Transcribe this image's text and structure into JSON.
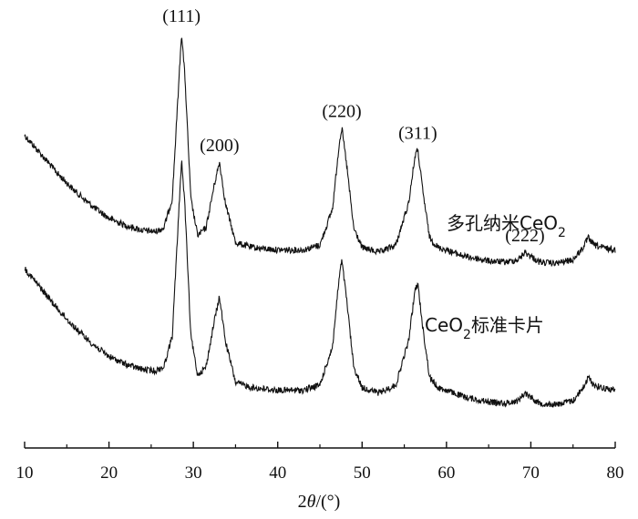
{
  "chart_data": {
    "type": "line",
    "title": "",
    "xlabel": {
      "prefix": "2",
      "symbol": "θ",
      "unit": "/(°)"
    },
    "ylabel": "",
    "xlim": [
      10,
      80
    ],
    "x_ticks": [
      10,
      20,
      30,
      40,
      50,
      60,
      70,
      80
    ],
    "grid": false,
    "series": [
      {
        "name": "多孔纳米CeO",
        "subscript": "2",
        "points": [
          [
            10,
            0.58
          ],
          [
            12,
            0.5
          ],
          [
            14,
            0.42
          ],
          [
            16,
            0.35
          ],
          [
            18,
            0.29
          ],
          [
            20,
            0.24
          ],
          [
            22,
            0.21
          ],
          [
            24,
            0.19
          ],
          [
            25.5,
            0.185
          ],
          [
            26.5,
            0.2
          ],
          [
            27.5,
            0.32
          ],
          [
            28.2,
            0.75
          ],
          [
            28.6,
            1.0
          ],
          [
            29.0,
            0.82
          ],
          [
            29.7,
            0.32
          ],
          [
            30.5,
            0.17
          ],
          [
            31.5,
            0.2
          ],
          [
            32.5,
            0.38
          ],
          [
            33.1,
            0.47
          ],
          [
            33.8,
            0.3
          ],
          [
            35,
            0.14
          ],
          [
            37,
            0.12
          ],
          [
            40,
            0.11
          ],
          [
            43,
            0.11
          ],
          [
            45,
            0.13
          ],
          [
            46.5,
            0.28
          ],
          [
            47.3,
            0.55
          ],
          [
            47.6,
            0.61
          ],
          [
            48.2,
            0.45
          ],
          [
            49,
            0.2
          ],
          [
            50,
            0.12
          ],
          [
            52,
            0.1
          ],
          [
            54,
            0.13
          ],
          [
            55.5,
            0.3
          ],
          [
            56.3,
            0.5
          ],
          [
            56.6,
            0.52
          ],
          [
            57.2,
            0.35
          ],
          [
            58,
            0.16
          ],
          [
            59,
            0.12
          ],
          [
            60,
            0.11
          ],
          [
            62,
            0.085
          ],
          [
            65,
            0.065
          ],
          [
            67,
            0.06
          ],
          [
            68.5,
            0.07
          ],
          [
            69.3,
            0.1
          ],
          [
            70,
            0.085
          ],
          [
            71,
            0.06
          ],
          [
            73,
            0.055
          ],
          [
            75,
            0.07
          ],
          [
            76.2,
            0.12
          ],
          [
            76.8,
            0.16
          ],
          [
            77.5,
            0.13
          ],
          [
            78.5,
            0.12
          ],
          [
            80,
            0.11
          ]
        ]
      },
      {
        "name": "CeO",
        "name_suffix": "标准卡片",
        "subscript": "2",
        "points": [
          [
            10,
            0.58
          ],
          [
            12,
            0.5
          ],
          [
            14,
            0.42
          ],
          [
            16,
            0.35
          ],
          [
            18,
            0.29
          ],
          [
            20,
            0.24
          ],
          [
            22,
            0.21
          ],
          [
            24,
            0.19
          ],
          [
            25.5,
            0.185
          ],
          [
            26.5,
            0.2
          ],
          [
            27.5,
            0.32
          ],
          [
            28.2,
            0.75
          ],
          [
            28.6,
            1.0
          ],
          [
            29.0,
            0.82
          ],
          [
            29.7,
            0.32
          ],
          [
            30.5,
            0.17
          ],
          [
            31.5,
            0.2
          ],
          [
            32.5,
            0.38
          ],
          [
            33.1,
            0.47
          ],
          [
            33.8,
            0.3
          ],
          [
            35,
            0.14
          ],
          [
            37,
            0.12
          ],
          [
            40,
            0.11
          ],
          [
            43,
            0.11
          ],
          [
            45,
            0.13
          ],
          [
            46.5,
            0.28
          ],
          [
            47.3,
            0.55
          ],
          [
            47.6,
            0.61
          ],
          [
            48.2,
            0.45
          ],
          [
            49,
            0.2
          ],
          [
            50,
            0.12
          ],
          [
            52,
            0.1
          ],
          [
            54,
            0.13
          ],
          [
            55.5,
            0.3
          ],
          [
            56.3,
            0.5
          ],
          [
            56.6,
            0.52
          ],
          [
            57.2,
            0.35
          ],
          [
            58,
            0.16
          ],
          [
            59,
            0.12
          ],
          [
            60,
            0.11
          ],
          [
            62,
            0.085
          ],
          [
            65,
            0.065
          ],
          [
            67,
            0.06
          ],
          [
            68.5,
            0.07
          ],
          [
            69.3,
            0.1
          ],
          [
            70,
            0.085
          ],
          [
            71,
            0.06
          ],
          [
            73,
            0.055
          ],
          [
            75,
            0.07
          ],
          [
            76.2,
            0.12
          ],
          [
            76.8,
            0.16
          ],
          [
            77.5,
            0.13
          ],
          [
            78.5,
            0.12
          ],
          [
            80,
            0.11
          ]
        ]
      }
    ],
    "annotations": [
      {
        "text": "(111)",
        "x": 28.6
      },
      {
        "text": "(200)",
        "x": 33.1
      },
      {
        "text": "(220)",
        "x": 47.6
      },
      {
        "text": "(311)",
        "x": 56.6
      },
      {
        "text": "(222)",
        "x": 69.3
      }
    ]
  }
}
